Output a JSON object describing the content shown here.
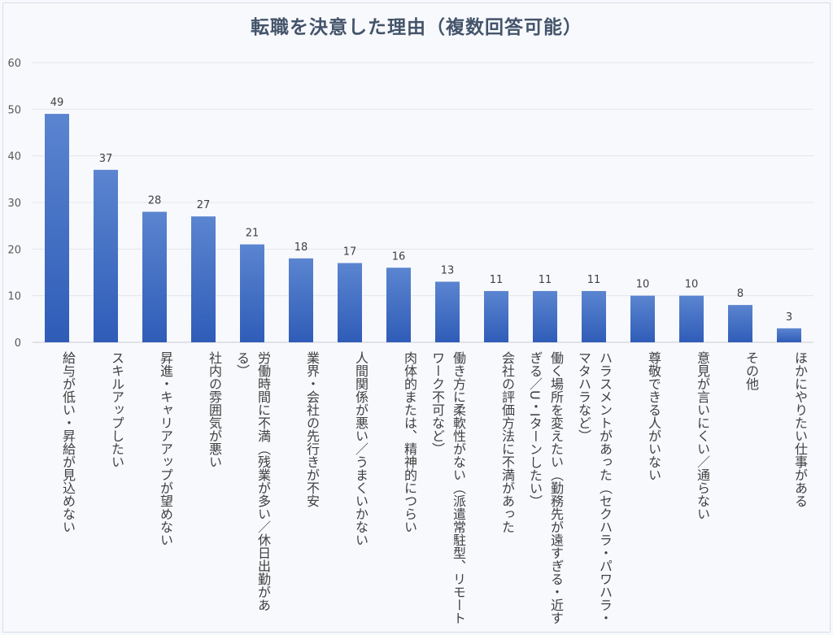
{
  "chart_data": {
    "type": "bar",
    "title": "転職を決意した理由（複数回答可能）",
    "xlabel": "",
    "ylabel": "",
    "ylim": [
      0,
      60
    ],
    "yticks": [
      0,
      10,
      20,
      30,
      40,
      50,
      60
    ],
    "grid": true,
    "bar_color_top": "#5b85d0",
    "bar_color_bottom": "#2f5cb8",
    "categories": [
      "給与が低い・昇給が見込めない",
      "スキルアップしたい",
      "昇進・キャリアアップが望めない",
      "社内の雰囲気が悪い",
      "労働時間に不満（残業が多い／休日出勤がある）",
      "業界・会社の先行きが不安",
      "人間関係が悪い／うまくいかない",
      "肉体的または、精神的につらい",
      "働き方に柔軟性がない（派遣常駐型、リモートワーク不可など）",
      "会社の評価方法に不満があった",
      "働く場所を変えたい（勤務先が遠すぎる・近すぎる／U・Iターンしたい）",
      "ハラスメントがあった（セクハラ・パワハラ・マタハラなど）",
      "尊敬できる人がいない",
      "意見が言いにくい／通らない",
      "その他",
      "ほかにやりたい仕事がある"
    ],
    "values": [
      49,
      37,
      28,
      27,
      21,
      18,
      17,
      16,
      13,
      11,
      11,
      11,
      10,
      10,
      8,
      3
    ]
  }
}
